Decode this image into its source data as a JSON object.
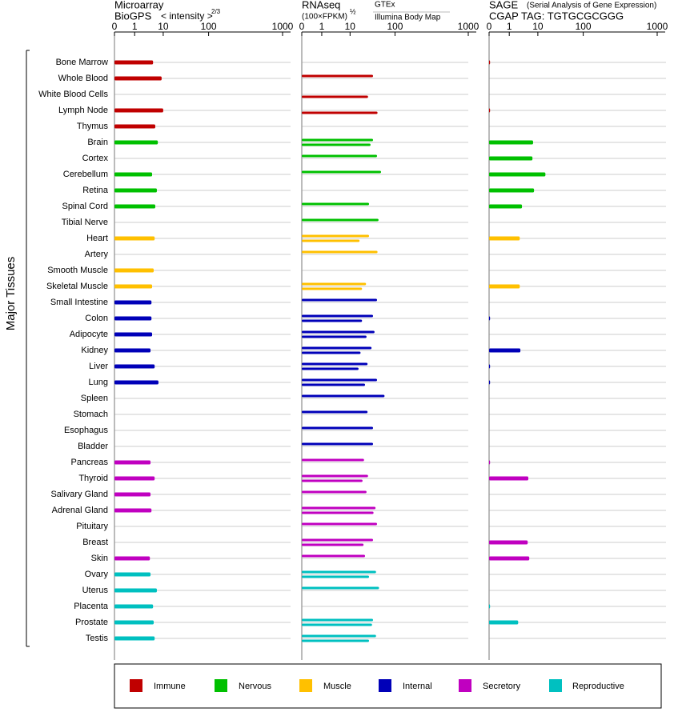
{
  "chart_data": {
    "type": "bar",
    "ylabel": "Major Tissues",
    "categories": [
      "Bone Marrow",
      "Whole Blood",
      "White Blood Cells",
      "Lymph Node",
      "Thymus",
      "Brain",
      "Cortex",
      "Cerebellum",
      "Retina",
      "Spinal Cord",
      "Tibial Nerve",
      "Heart",
      "Artery",
      "Smooth Muscle",
      "Skeletal Muscle",
      "Small Intestine",
      "Colon",
      "Adipocyte",
      "Kidney",
      "Liver",
      "Lung",
      "Spleen",
      "Stomach",
      "Esophagus",
      "Bladder",
      "Pancreas",
      "Thyroid",
      "Salivary Gland",
      "Adrenal Gland",
      "Pituitary",
      "Breast",
      "Skin",
      "Ovary",
      "Uterus",
      "Placenta",
      "Prostate",
      "Testis"
    ],
    "category_group": [
      0,
      0,
      0,
      0,
      0,
      1,
      1,
      1,
      1,
      1,
      1,
      2,
      2,
      2,
      2,
      3,
      3,
      3,
      3,
      3,
      3,
      3,
      3,
      3,
      3,
      4,
      4,
      4,
      4,
      4,
      4,
      4,
      5,
      5,
      5,
      5,
      5
    ],
    "legend": [
      {
        "name": "Immune",
        "color": "#c00000"
      },
      {
        "name": "Nervous",
        "color": "#00c000"
      },
      {
        "name": "Muscle",
        "color": "#ffc000"
      },
      {
        "name": "Internal",
        "color": "#0000b8"
      },
      {
        "name": "Secretory",
        "color": "#c000c0"
      },
      {
        "name": "Reproductive",
        "color": "#00c0c0"
      }
    ],
    "panels": [
      {
        "title": "Microarray",
        "source": "BioGPS",
        "axis_label": "< intensity >",
        "axis_power": "2/3",
        "xlim": [
          0,
          1000
        ],
        "xticks": [
          0,
          1,
          10,
          100,
          1000
        ],
        "series": [
          {
            "values": [
              6.8,
              9.5,
              null,
              10,
              7.5,
              8.3,
              null,
              6.5,
              8,
              7.5,
              null,
              7.3,
              null,
              7,
              6.5,
              6.3,
              6.3,
              6.5,
              6,
              7.3,
              8.5,
              null,
              null,
              null,
              null,
              6,
              7.3,
              6,
              6.3,
              null,
              null,
              5.8,
              6,
              8,
              6.8,
              7,
              7.3
            ]
          }
        ]
      },
      {
        "title": "RNAseq",
        "axis_label": "(100×FPKM)",
        "axis_power": "½",
        "xlim": [
          0,
          1000
        ],
        "xticks": [
          0,
          1,
          10,
          100,
          1000
        ],
        "series": [
          {
            "name": "GTEx",
            "values": [
              null,
              56,
              null,
              null,
              null,
              56,
              64,
              72,
              null,
              48,
              67,
              48,
              65,
              null,
              42,
              64,
              56,
              59,
              53,
              45,
              64,
              79,
              45,
              56,
              56,
              38,
              46,
              43,
              61,
              64,
              56,
              40,
              62,
              68,
              null,
              56,
              62
            ]
          },
          {
            "name": "Illumina Body Map",
            "values": [
              null,
              null,
              46,
              65,
              null,
              51,
              null,
              null,
              null,
              null,
              null,
              29,
              null,
              null,
              34,
              null,
              34,
              43,
              31,
              27,
              40,
              null,
              null,
              null,
              null,
              null,
              35,
              null,
              57,
              null,
              37,
              null,
              48,
              null,
              null,
              54,
              48
            ]
          }
        ]
      },
      {
        "title": "SAGE",
        "subtitle": "(Serial Analysis of Gene Expression)",
        "source": "CGAP TAG: TGTGCGCGGG",
        "xlim": [
          0,
          1000
        ],
        "xticks": [
          0,
          1,
          10,
          100,
          1000
        ],
        "series": [
          {
            "values": [
              0.04,
              null,
              null,
              0.04,
              null,
              8.5,
              8.3,
              25,
              8.8,
              5,
              null,
              4.3,
              null,
              null,
              4.3,
              null,
              0.04,
              null,
              4.5,
              0.04,
              0.04,
              null,
              null,
              null,
              null,
              0.04,
              7,
              null,
              null,
              null,
              6.8,
              7.3,
              null,
              null,
              0.04,
              3.8,
              null
            ]
          }
        ]
      }
    ]
  }
}
